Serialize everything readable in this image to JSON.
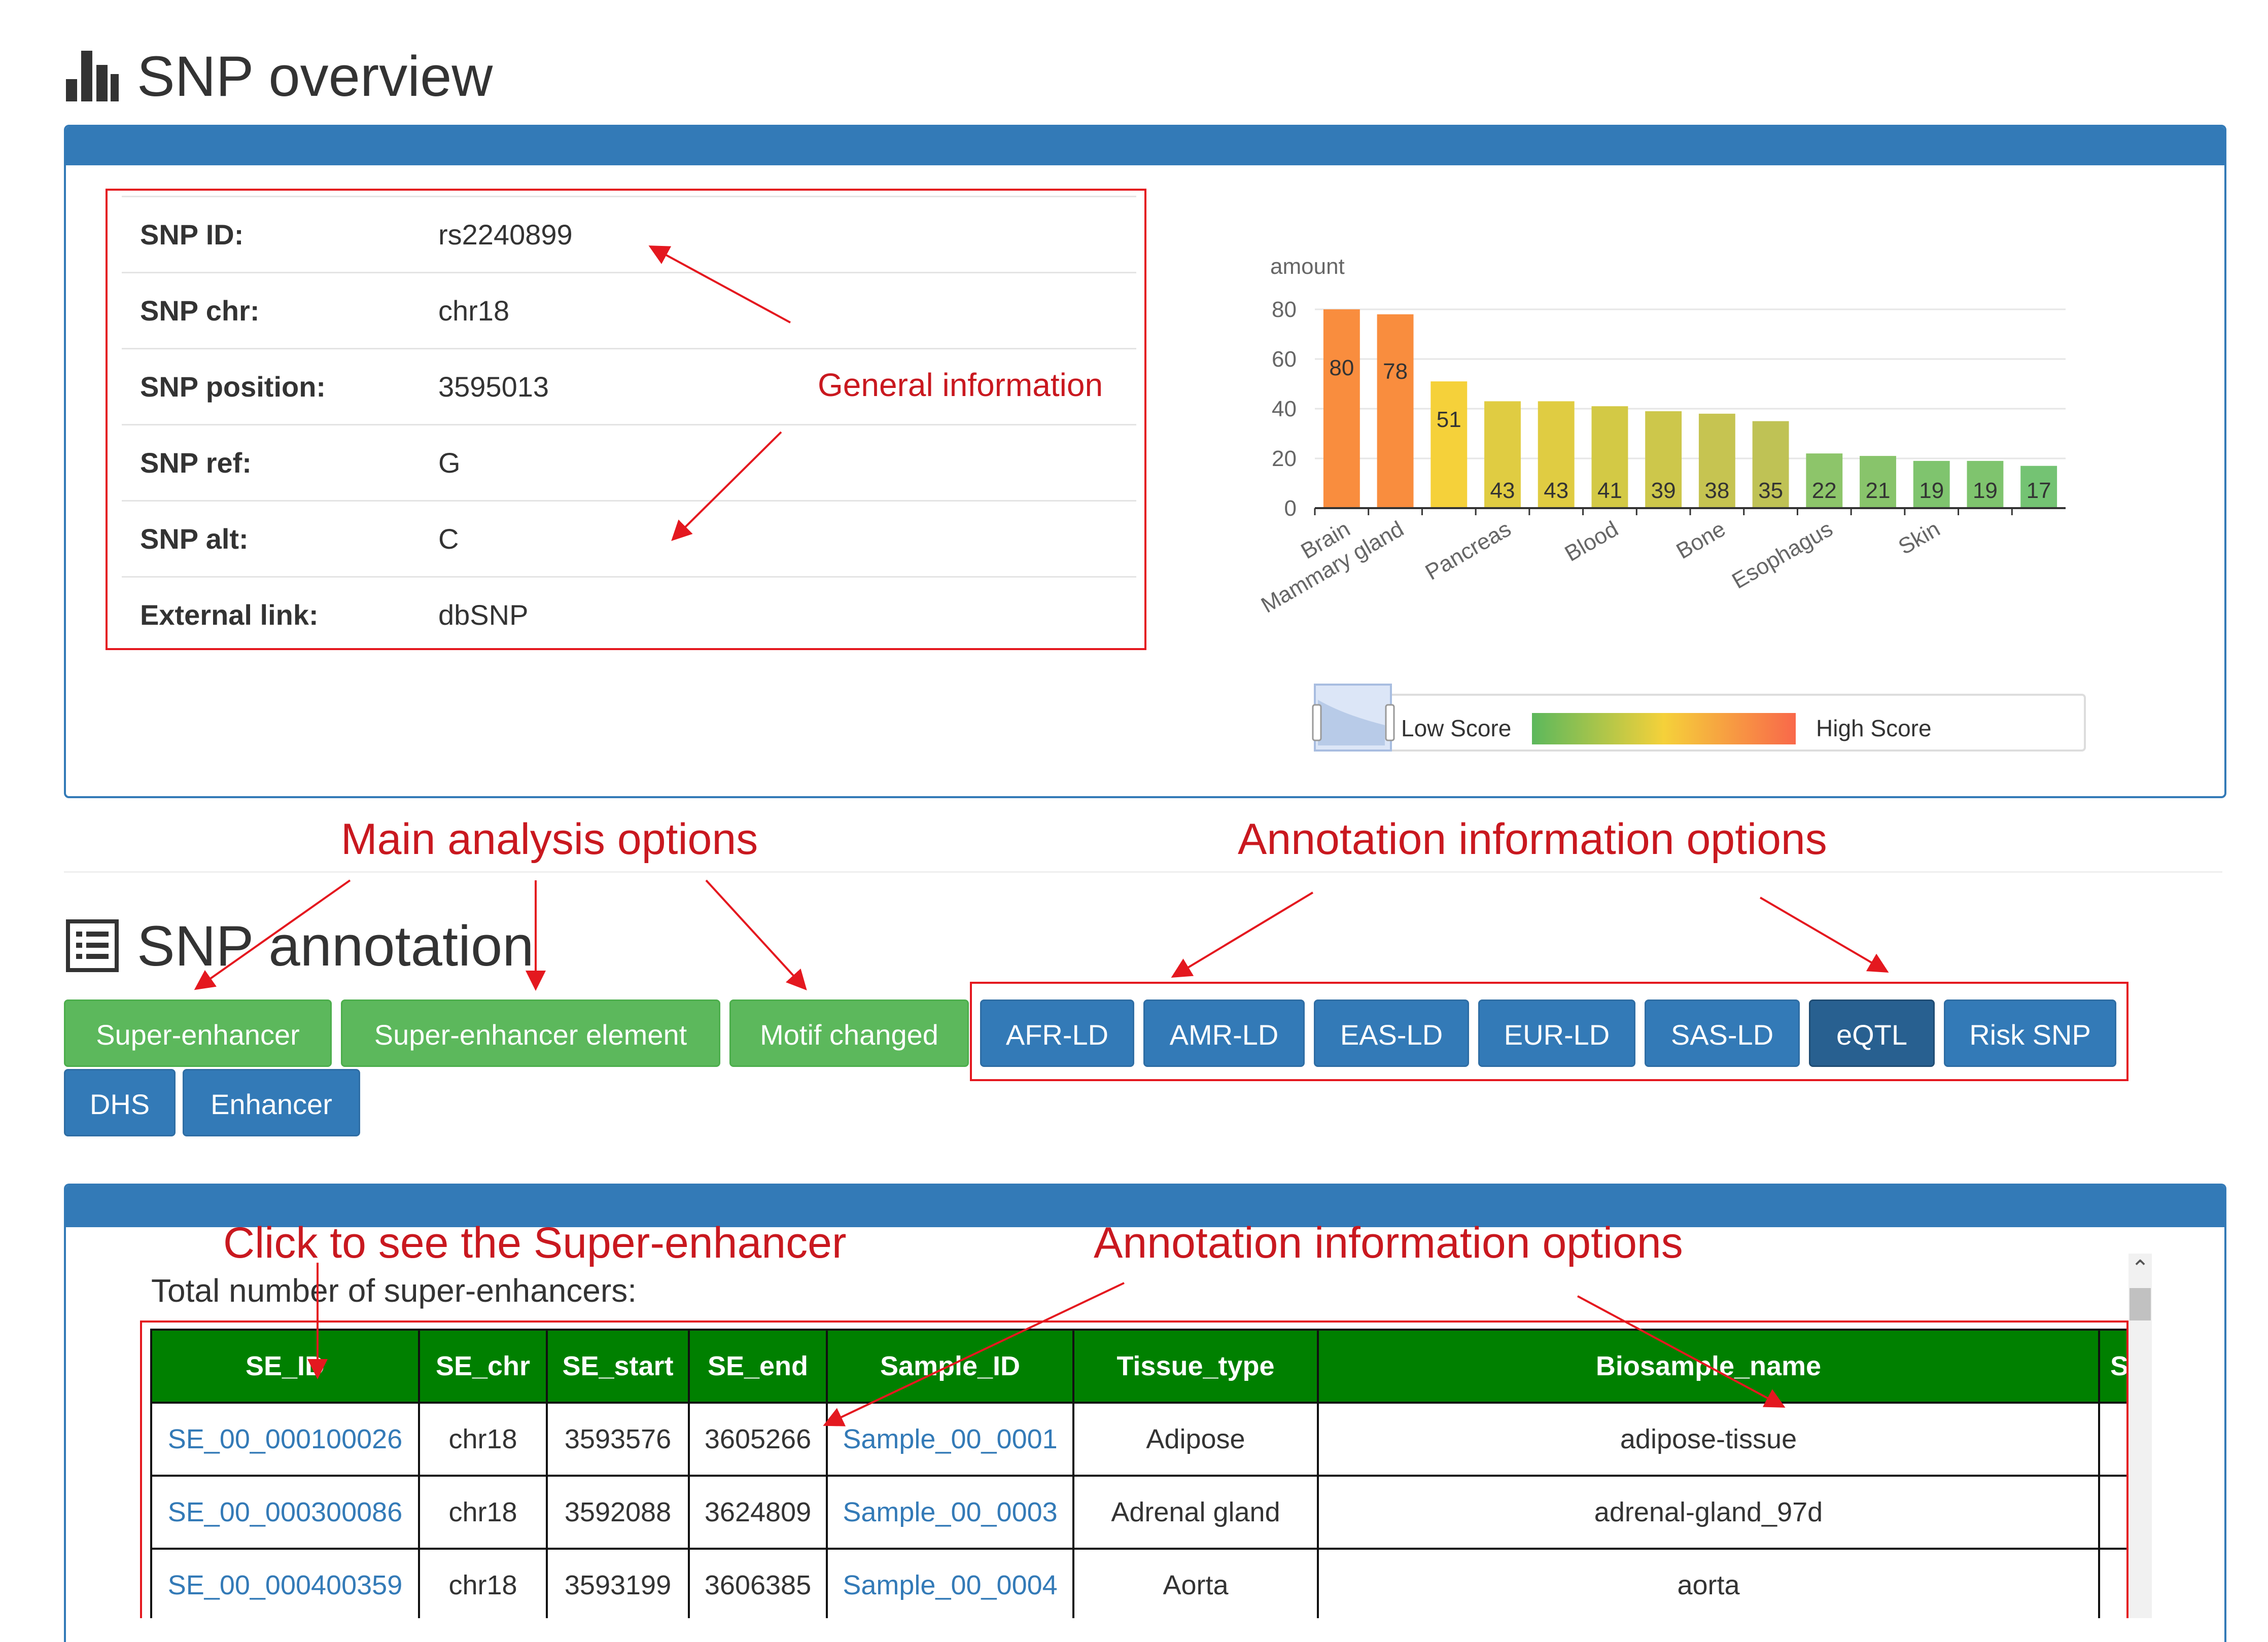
{
  "overview": {
    "title": "SNP overview",
    "info_rows": [
      {
        "label": "SNP ID:",
        "value": "rs2240899"
      },
      {
        "label": "SNP chr:",
        "value": "chr18"
      },
      {
        "label": "SNP position:",
        "value": "3595013"
      },
      {
        "label": "SNP ref:",
        "value": "G"
      },
      {
        "label": "SNP alt:",
        "value": "C"
      },
      {
        "label": "External link:",
        "value": "dbSNP"
      }
    ],
    "annotation_general": "General information"
  },
  "chart_data": {
    "type": "bar",
    "ylabel": "amount",
    "ylim": [
      0,
      80
    ],
    "yticks": [
      0,
      20,
      40,
      60,
      80
    ],
    "categories": [
      "Brain",
      "Mammary gland",
      "",
      "Pancreas",
      "",
      "Blood",
      "",
      "Bone",
      "",
      "Esophagus",
      "",
      "Skin",
      "",
      ""
    ],
    "values": [
      80,
      78,
      51,
      43,
      43,
      41,
      39,
      38,
      35,
      22,
      21,
      19,
      19,
      17
    ],
    "colors": [
      "#f98d3e",
      "#f98d3e",
      "#f5d13a",
      "#e0cc42",
      "#e0cc42",
      "#d3c945",
      "#cdc74b",
      "#c6c451",
      "#bfc255",
      "#8dc56a",
      "#88c46b",
      "#7fc46e",
      "#7fc46e",
      "#74c373"
    ],
    "grid": true,
    "visual_map": {
      "low_label": "Low Score",
      "high_label": "High Score",
      "gradient": [
        "#5cb85c",
        "#f5d13a",
        "#f9684a"
      ]
    }
  },
  "annotations": {
    "main_options": "Main analysis options",
    "annotation_options": "Annotation information options",
    "click_se": "Click to see the Super-enhancer",
    "annotation_options_2": "Annotation information options"
  },
  "snp_annotation": {
    "title": "SNP annotation",
    "main_buttons": [
      "Super-enhancer",
      "Super-enhancer element",
      "Motif changed"
    ],
    "annotation_buttons": [
      "AFR-LD",
      "AMR-LD",
      "EAS-LD",
      "EUR-LD",
      "SAS-LD",
      "eQTL",
      "Risk SNP"
    ],
    "second_row_buttons": [
      "DHS",
      "Enhancer"
    ]
  },
  "se_table": {
    "total_label": "Total number of super-enhancers:",
    "columns": [
      "SE_ID",
      "SE_chr",
      "SE_start",
      "SE_end",
      "Sample_ID",
      "Tissue_type",
      "Biosample_name",
      "S"
    ],
    "rows": [
      [
        "SE_00_000100026",
        "chr18",
        "3593576",
        "3605266",
        "Sample_00_0001",
        "Adipose",
        "adipose-tissue",
        ""
      ],
      [
        "SE_00_000300086",
        "chr18",
        "3592088",
        "3624809",
        "Sample_00_0003",
        "Adrenal gland",
        "adrenal-gland_97d",
        ""
      ],
      [
        "SE_00_000400359",
        "chr18",
        "3593199",
        "3606385",
        "Sample_00_0004",
        "Aorta",
        "aorta",
        ""
      ]
    ]
  },
  "colors": {
    "primary": "#337ab7",
    "success": "#5cb85c",
    "active": "#286090",
    "table_header": "#008000",
    "annotation": "#e4181f"
  }
}
